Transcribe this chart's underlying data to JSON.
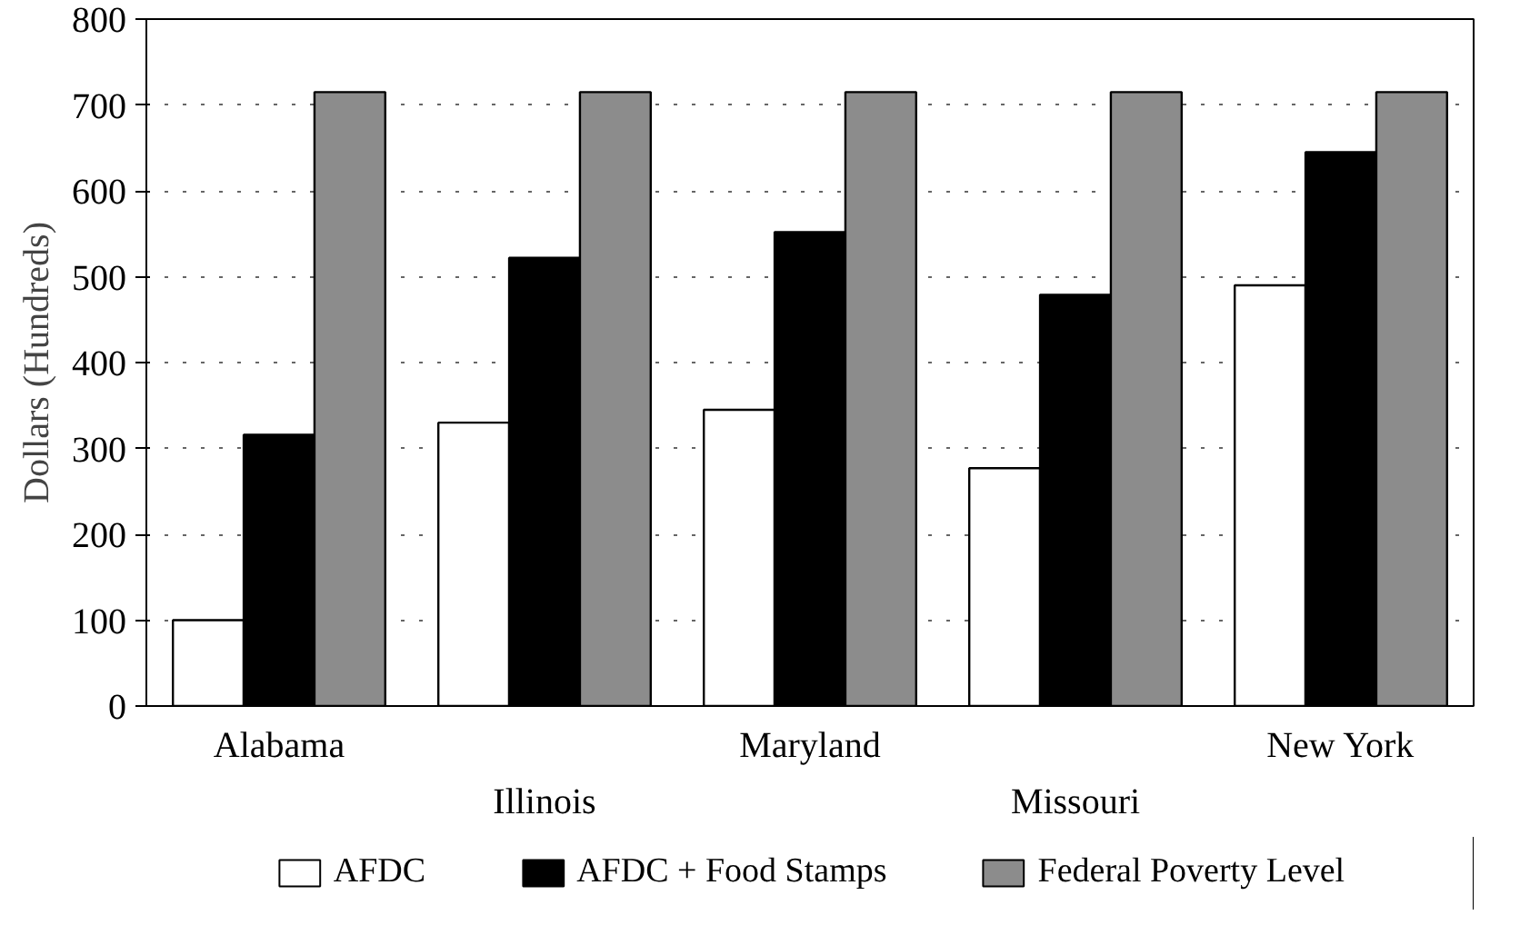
{
  "chart_data": {
    "type": "bar",
    "ylabel": "Dollars (Hundreds)",
    "categories": [
      "Alabama",
      "Illinois",
      "Maryland",
      "Missouri",
      "New York"
    ],
    "series": [
      {
        "name": "AFDC",
        "color": "#ffffff",
        "values": [
          100,
          330,
          345,
          277,
          490
        ]
      },
      {
        "name": "AFDC + Food Stamps",
        "color": "#000000",
        "values": [
          316,
          522,
          552,
          479,
          645
        ]
      },
      {
        "name": "Federal Poverty Level",
        "color": "#8c8c8c",
        "values": [
          715,
          715,
          715,
          715,
          715
        ]
      }
    ],
    "ylim": [
      0,
      800
    ],
    "yticks": [
      0,
      100,
      200,
      300,
      400,
      500,
      600,
      700,
      800
    ],
    "grid": "y",
    "legend": "bottom"
  }
}
